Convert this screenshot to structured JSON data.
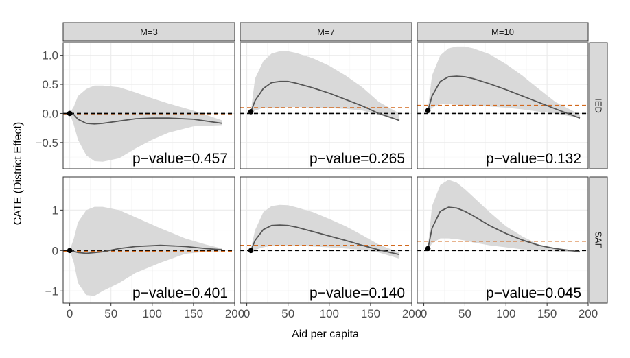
{
  "chart_data": {
    "type": "line",
    "xlabel": "Aid per capita",
    "ylabel": "CATE (District Effect)",
    "columns": [
      "M=3",
      "M=7",
      "M=10"
    ],
    "rows": [
      "IED",
      "SAF"
    ],
    "xlim": [
      -8,
      200
    ],
    "x_ticks": [
      0,
      50,
      100,
      150,
      200
    ],
    "x_tick_labels": [
      "0",
      "50",
      "100",
      "150",
      "200"
    ],
    "row_scales": [
      {
        "row": "IED",
        "ylim": [
          -0.95,
          1.22
        ],
        "ticks": [
          -0.5,
          0.0,
          0.5,
          1.0
        ],
        "tick_labels": [
          "−0.5",
          "0.0",
          "0.5",
          "1.0"
        ]
      },
      {
        "row": "SAF",
        "ylim": [
          -1.3,
          1.82
        ],
        "ticks": [
          -1,
          0,
          1
        ],
        "tick_labels": [
          "−1",
          "0",
          "1"
        ]
      }
    ],
    "grid": true,
    "panels": [
      {
        "row": "IED",
        "col": "M=3",
        "p_value": "p−value=0.457",
        "orange_ref": -0.02,
        "point": [
          0,
          0.0
        ],
        "x": [
          0,
          5,
          10,
          20,
          30,
          40,
          60,
          80,
          100,
          120,
          150,
          185
        ],
        "estimate": [
          0.0,
          -0.02,
          -0.1,
          -0.17,
          -0.18,
          -0.17,
          -0.13,
          -0.09,
          -0.08,
          -0.08,
          -0.1,
          -0.17
        ],
        "lower": [
          0.0,
          -0.2,
          -0.45,
          -0.72,
          -0.82,
          -0.83,
          -0.77,
          -0.6,
          -0.45,
          -0.33,
          -0.22,
          -0.2
        ],
        "upper": [
          0.0,
          0.12,
          0.3,
          0.42,
          0.48,
          0.48,
          0.45,
          0.36,
          0.26,
          0.17,
          0.05,
          -0.12
        ]
      },
      {
        "row": "IED",
        "col": "M=7",
        "p_value": "p−value=0.265",
        "orange_ref": 0.1,
        "point": [
          5,
          0.03
        ],
        "x": [
          5,
          10,
          20,
          30,
          40,
          50,
          60,
          80,
          100,
          120,
          140,
          160,
          185
        ],
        "estimate": [
          0.03,
          0.22,
          0.43,
          0.53,
          0.55,
          0.55,
          0.52,
          0.44,
          0.35,
          0.24,
          0.13,
          0.0,
          -0.12
        ],
        "lower": [
          0.0,
          0.05,
          0.1,
          0.1,
          0.1,
          0.11,
          0.11,
          0.1,
          0.09,
          0.08,
          0.05,
          -0.02,
          -0.1
        ],
        "upper": [
          0.05,
          0.6,
          0.9,
          1.03,
          1.07,
          1.07,
          1.04,
          0.95,
          0.82,
          0.65,
          0.45,
          0.2,
          0.0
        ]
      },
      {
        "row": "IED",
        "col": "M=10",
        "p_value": "p−value=0.132",
        "orange_ref": 0.14,
        "point": [
          5,
          0.05
        ],
        "x": [
          5,
          10,
          20,
          30,
          40,
          50,
          60,
          80,
          100,
          120,
          140,
          160,
          190
        ],
        "estimate": [
          0.05,
          0.3,
          0.55,
          0.63,
          0.64,
          0.63,
          0.6,
          0.51,
          0.41,
          0.3,
          0.19,
          0.08,
          -0.08
        ],
        "lower": [
          0.0,
          0.1,
          0.16,
          0.16,
          0.15,
          0.14,
          0.13,
          0.12,
          0.1,
          0.07,
          0.03,
          0.0,
          -0.08
        ],
        "upper": [
          0.1,
          0.65,
          1.0,
          1.12,
          1.15,
          1.15,
          1.12,
          1.02,
          0.85,
          0.65,
          0.42,
          0.2,
          -0.02
        ]
      },
      {
        "row": "SAF",
        "col": "M=3",
        "p_value": "p−value=0.401",
        "orange_ref": -0.02,
        "point": [
          0,
          0.0
        ],
        "x": [
          0,
          5,
          10,
          20,
          30,
          40,
          60,
          80,
          110,
          140,
          165,
          185
        ],
        "estimate": [
          0.0,
          -0.02,
          -0.05,
          -0.07,
          -0.05,
          -0.03,
          0.05,
          0.1,
          0.13,
          0.1,
          0.05,
          0.02
        ],
        "lower": [
          0.0,
          -0.3,
          -0.8,
          -1.1,
          -1.12,
          -1.0,
          -0.8,
          -0.55,
          -0.3,
          -0.08,
          -0.03,
          -0.02
        ],
        "upper": [
          0.0,
          0.3,
          0.7,
          1.0,
          1.08,
          1.08,
          1.0,
          0.82,
          0.55,
          0.3,
          0.15,
          0.05
        ]
      },
      {
        "row": "SAF",
        "col": "M=7",
        "p_value": "p−value=0.140",
        "orange_ref": 0.13,
        "point": [
          5,
          0.0
        ],
        "x": [
          5,
          10,
          20,
          30,
          40,
          50,
          60,
          80,
          100,
          120,
          140,
          160,
          185
        ],
        "estimate": [
          0.0,
          0.25,
          0.52,
          0.62,
          0.63,
          0.62,
          0.58,
          0.47,
          0.36,
          0.25,
          0.13,
          0.02,
          -0.1
        ],
        "lower": [
          0.0,
          0.02,
          0.08,
          0.12,
          0.13,
          0.13,
          0.12,
          0.1,
          0.08,
          0.05,
          0.02,
          -0.05,
          -0.2
        ],
        "upper": [
          0.05,
          0.5,
          0.95,
          1.1,
          1.13,
          1.12,
          1.07,
          0.95,
          0.78,
          0.6,
          0.38,
          0.15,
          -0.05
        ]
      },
      {
        "row": "SAF",
        "col": "M=10",
        "p_value": "p−value=0.045",
        "orange_ref": 0.23,
        "point": [
          5,
          0.05
        ],
        "x": [
          5,
          10,
          20,
          30,
          40,
          50,
          60,
          80,
          100,
          120,
          140,
          160,
          190
        ],
        "estimate": [
          0.05,
          0.55,
          0.97,
          1.07,
          1.05,
          0.97,
          0.86,
          0.62,
          0.42,
          0.26,
          0.13,
          0.05,
          -0.03
        ],
        "lower": [
          0.0,
          0.18,
          0.3,
          0.3,
          0.28,
          0.25,
          0.2,
          0.13,
          0.08,
          0.03,
          0.0,
          -0.02,
          -0.05
        ],
        "upper": [
          0.1,
          1.1,
          1.62,
          1.75,
          1.68,
          1.52,
          1.33,
          0.95,
          0.6,
          0.35,
          0.15,
          0.05,
          0.0
        ]
      }
    ]
  }
}
